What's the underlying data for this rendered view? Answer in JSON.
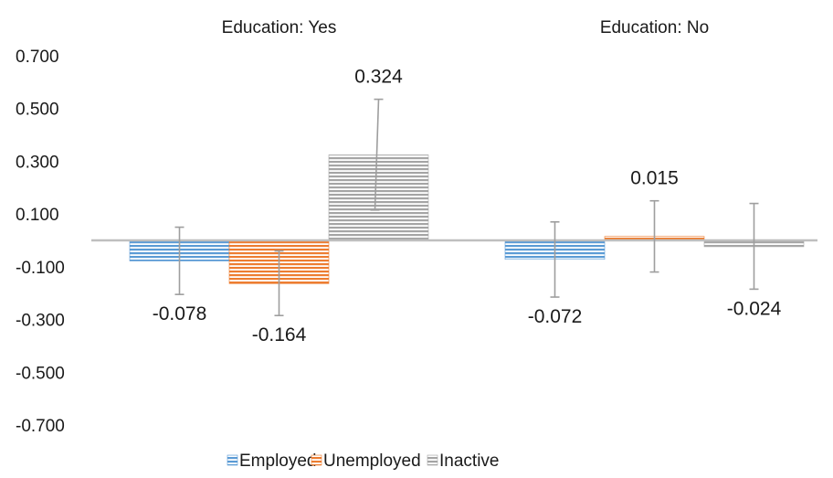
{
  "chart_data": {
    "type": "bar",
    "title": "",
    "xlabel": "",
    "ylabel": "",
    "ylim": [
      -0.7,
      0.7
    ],
    "yticks": [
      "0.700",
      "0.500",
      "0.300",
      "0.100",
      "-0.100",
      "-0.300",
      "-0.500",
      "-0.700"
    ],
    "ytick_values": [
      0.7,
      0.5,
      0.3,
      0.1,
      -0.1,
      -0.3,
      -0.5,
      -0.7
    ],
    "grid": false,
    "legend_position": "bottom",
    "categories": [
      "Education: Yes",
      "Education: No"
    ],
    "series": [
      {
        "name": "Employed",
        "color": "#5b9bd5",
        "values": [
          -0.078,
          -0.072
        ],
        "labels": [
          "-0.078",
          "-0.072"
        ],
        "error_low": [
          -0.205,
          -0.215
        ],
        "error_high": [
          0.05,
          0.07
        ]
      },
      {
        "name": "Unemployed",
        "color": "#ed7d31",
        "values": [
          -0.164,
          0.015
        ],
        "labels": [
          "-0.164",
          "0.015"
        ],
        "error_low": [
          -0.285,
          -0.12
        ],
        "error_high": [
          -0.04,
          0.15
        ]
      },
      {
        "name": "Inactive",
        "color": "#a5a5a5",
        "values": [
          0.324,
          -0.024
        ],
        "labels": [
          "0.324",
          "-0.024"
        ],
        "error_low": [
          0.115,
          -0.185
        ],
        "error_high": [
          0.535,
          0.14
        ]
      }
    ]
  }
}
